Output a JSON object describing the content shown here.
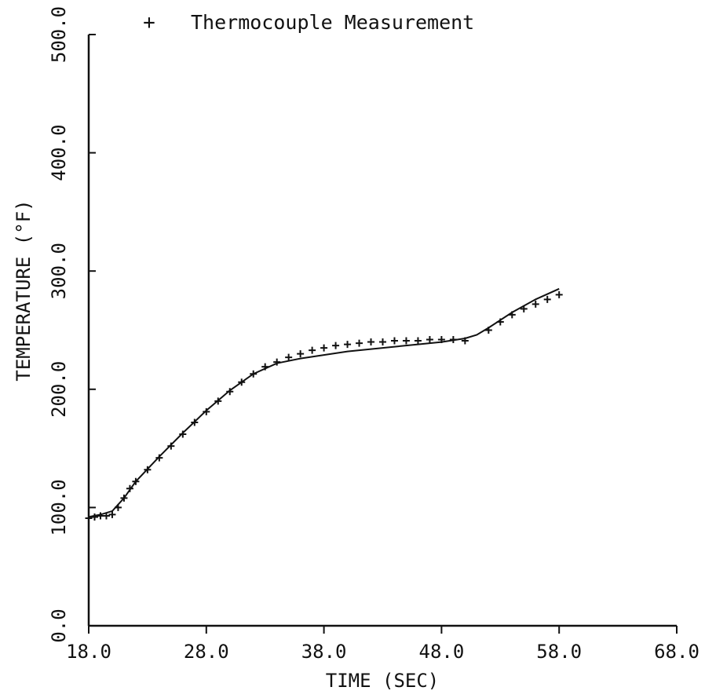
{
  "chart_data": {
    "type": "line",
    "title": "",
    "xlabel": "TIME (SEC)",
    "ylabel": "TEMPERATURE (°F)",
    "xlim": [
      18,
      68
    ],
    "ylim": [
      0,
      500
    ],
    "xticks": [
      "18.0",
      "28.0",
      "38.0",
      "48.0",
      "58.0",
      "68.0"
    ],
    "yticks": [
      "0.0",
      "100.0",
      "200.0",
      "300.0",
      "400.0",
      "500.0"
    ],
    "grid": false,
    "legend_position": "top",
    "legend": [
      {
        "symbol": "+",
        "label": "Thermocouple Measurement"
      }
    ],
    "series": [
      {
        "name": "",
        "style": "line",
        "x": [
          18.0,
          19.0,
          20.0,
          21.0,
          22.0,
          24.0,
          26.0,
          28.0,
          30.0,
          32.0,
          34.0,
          36.0,
          38.0,
          40.0,
          42.0,
          44.0,
          46.0,
          48.0,
          50.0,
          51.0,
          52.0,
          54.0,
          56.0,
          58.0
        ],
        "y": [
          92,
          94,
          97,
          108,
          122,
          143,
          163,
          182,
          199,
          213,
          222,
          226,
          229,
          232,
          234,
          236,
          238,
          240,
          243,
          246,
          252,
          265,
          276,
          285
        ]
      },
      {
        "name": "Thermocouple Measurement",
        "style": "markers",
        "marker": "+",
        "x": [
          18.0,
          18.5,
          19.0,
          19.5,
          20.0,
          20.5,
          21.0,
          21.5,
          22.0,
          23.0,
          24.0,
          25.0,
          26.0,
          27.0,
          28.0,
          29.0,
          30.0,
          31.0,
          32.0,
          33.0,
          34.0,
          35.0,
          36.0,
          37.0,
          38.0,
          39.0,
          40.0,
          41.0,
          42.0,
          43.0,
          44.0,
          45.0,
          46.0,
          47.0,
          48.0,
          49.0,
          50.0,
          52.0,
          53.0,
          54.0,
          55.0,
          56.0,
          57.0,
          58.0
        ],
        "y": [
          91,
          92,
          93,
          93,
          94,
          100,
          108,
          116,
          122,
          132,
          142,
          152,
          162,
          172,
          181,
          190,
          198,
          206,
          213,
          219,
          223,
          227,
          230,
          233,
          235,
          237,
          238,
          239,
          240,
          240,
          241,
          241,
          241,
          242,
          242,
          242,
          241,
          250,
          257,
          263,
          268,
          272,
          276,
          280
        ]
      }
    ]
  }
}
